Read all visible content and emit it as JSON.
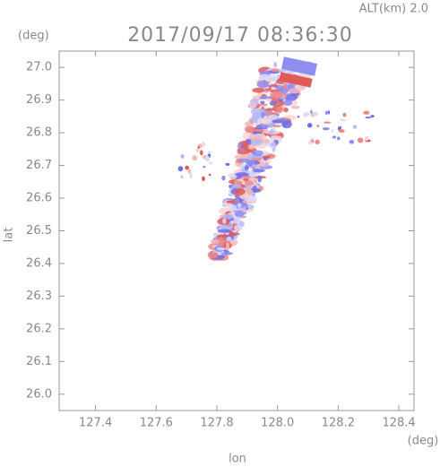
{
  "chart_data": {
    "type": "field",
    "title": "2017/09/17 08:36:30",
    "annotation": "ALT(km)  2.0",
    "x_label": "lon",
    "y_label": "lat",
    "x_unit": "(deg)",
    "y_unit": "(deg)",
    "xlim": [
      127.28,
      128.45
    ],
    "xticks": [
      127.4,
      127.6,
      127.8,
      {
        "value": 128,
        "label": "128.0"
      },
      128.2,
      128.4
    ],
    "ylim": [
      25.95,
      27.05
    ],
    "yticks": [
      {
        "value": 26,
        "label": "26.0"
      },
      26.1,
      26.2,
      26.3,
      26.4,
      26.5,
      26.6,
      26.7,
      26.8,
      26.9,
      {
        "value": 27,
        "label": "27.0"
      }
    ]
  }
}
